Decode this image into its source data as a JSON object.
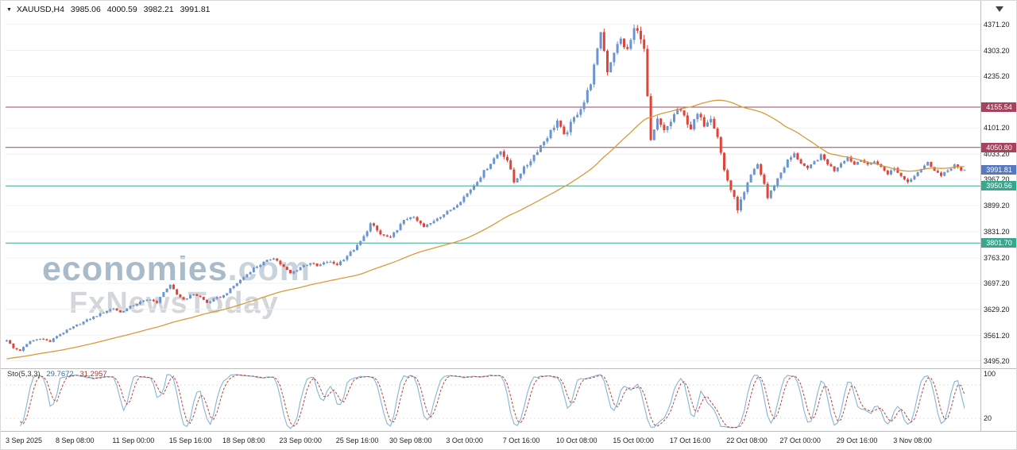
{
  "header": {
    "symbol_period": "XAUUSD,H4",
    "open": "3985.06",
    "high": "4000.59",
    "low": "3982.21",
    "close": "3991.81"
  },
  "watermark": {
    "brand": "economies",
    "brand_suffix": ".com",
    "tagline": "FxNewsToday"
  },
  "indicator": {
    "name": "Sto(5,3,3)",
    "value_k": "29.7672",
    "value_d": "31.2957"
  },
  "colors": {
    "up": "#6c94d1",
    "down": "#e04338",
    "ma": "#d79c3a",
    "stoch_k": "#86b4d6",
    "stoch_d": "#bb423c",
    "grid": "#f0f0f0",
    "level_red": "#a8415b",
    "level_teal": "#39a78e",
    "current_blue": "#5779bd",
    "separator": "#bdbdbd",
    "axis_text": "#1a1a1a"
  },
  "chart_data": {
    "type": "candlestick",
    "title": "XAUUSD,H4",
    "symbol": "XAUUSD",
    "timeframe": "H4",
    "ylim": [
      3482,
      4420
    ],
    "n_candles": 288,
    "last_close": 3991.81,
    "price_ticks": [
      "4371.20",
      "4303.20",
      "4235.20",
      "4101.20",
      "4033.20",
      "3967.20",
      "3899.20",
      "3831.20",
      "3763.20",
      "3697.20",
      "3629.20",
      "3561.20",
      "3495.20"
    ],
    "time_labels": [
      {
        "text": "3 Sep 2025",
        "i": 0
      },
      {
        "text": "8 Sep 08:00",
        "i": 15
      },
      {
        "text": "11 Sep 00:00",
        "i": 32
      },
      {
        "text": "15 Sep 16:00",
        "i": 49
      },
      {
        "text": "18 Sep 08:00",
        "i": 65
      },
      {
        "text": "23 Sep 00:00",
        "i": 82
      },
      {
        "text": "25 Sep 16:00",
        "i": 99
      },
      {
        "text": "30 Sep 08:00",
        "i": 115
      },
      {
        "text": "3 Oct 00:00",
        "i": 132
      },
      {
        "text": "7 Oct 16:00",
        "i": 149
      },
      {
        "text": "10 Oct 08:00",
        "i": 165
      },
      {
        "text": "15 Oct 00:00",
        "i": 182
      },
      {
        "text": "17 Oct 16:00",
        "i": 199
      },
      {
        "text": "22 Oct 08:00",
        "i": 216
      },
      {
        "text": "27 Oct 00:00",
        "i": 232
      },
      {
        "text": "29 Oct 16:00",
        "i": 249
      },
      {
        "text": "3 Nov 08:00",
        "i": 266
      }
    ],
    "levels": [
      {
        "label": "4155.54",
        "price": 4155.54,
        "color": "#a8415b"
      },
      {
        "label": "4050.80",
        "price": 4050.8,
        "color": "#a8415b"
      },
      {
        "label": "3950.56",
        "price": 3950.56,
        "color": "#39a78e"
      },
      {
        "label": "3801.70",
        "price": 3801.7,
        "color": "#39a78e"
      }
    ],
    "current_price": {
      "label": "3991.81",
      "price": 3991.81,
      "color": "#5779bd"
    },
    "ma": {
      "type": "SMA",
      "period": 55
    },
    "stochastic": {
      "params": "5,3,3",
      "k_period": 5,
      "slowing": 3,
      "d_period": 3,
      "last_k": 29.7672,
      "last_d": 31.2957,
      "scale_labels": [
        {
          "text": "100",
          "value": 100
        },
        {
          "text": "20",
          "value": 20
        }
      ]
    },
    "price_path_waypoints": [
      [
        0,
        3550
      ],
      [
        2,
        3528
      ],
      [
        4,
        3522
      ],
      [
        7,
        3546
      ],
      [
        10,
        3554
      ],
      [
        13,
        3545
      ],
      [
        15,
        3560
      ],
      [
        18,
        3574
      ],
      [
        21,
        3588
      ],
      [
        24,
        3601
      ],
      [
        27,
        3613
      ],
      [
        30,
        3626
      ],
      [
        32,
        3632
      ],
      [
        34,
        3621
      ],
      [
        37,
        3636
      ],
      [
        40,
        3648
      ],
      [
        43,
        3656
      ],
      [
        45,
        3645
      ],
      [
        47,
        3676
      ],
      [
        49,
        3691
      ],
      [
        51,
        3668
      ],
      [
        53,
        3655
      ],
      [
        56,
        3669
      ],
      [
        58,
        3661
      ],
      [
        60,
        3646
      ],
      [
        63,
        3659
      ],
      [
        65,
        3665
      ],
      [
        68,
        3690
      ],
      [
        71,
        3713
      ],
      [
        74,
        3736
      ],
      [
        77,
        3751
      ],
      [
        80,
        3764
      ],
      [
        82,
        3747
      ],
      [
        85,
        3722
      ],
      [
        88,
        3739
      ],
      [
        91,
        3751
      ],
      [
        93,
        3741
      ],
      [
        96,
        3753
      ],
      [
        99,
        3746
      ],
      [
        101,
        3761
      ],
      [
        103,
        3777
      ],
      [
        105,
        3794
      ],
      [
        107,
        3818
      ],
      [
        109,
        3852
      ],
      [
        110,
        3844
      ],
      [
        112,
        3824
      ],
      [
        115,
        3814
      ],
      [
        117,
        3839
      ],
      [
        119,
        3859
      ],
      [
        121,
        3872
      ],
      [
        123,
        3859
      ],
      [
        125,
        3843
      ],
      [
        127,
        3853
      ],
      [
        129,
        3868
      ],
      [
        132,
        3882
      ],
      [
        134,
        3896
      ],
      [
        136,
        3913
      ],
      [
        138,
        3931
      ],
      [
        140,
        3953
      ],
      [
        142,
        3976
      ],
      [
        144,
        3999
      ],
      [
        146,
        4022
      ],
      [
        148,
        4042
      ],
      [
        150,
        4018
      ],
      [
        152,
        3960
      ],
      [
        154,
        3986
      ],
      [
        156,
        4006
      ],
      [
        158,
        4031
      ],
      [
        160,
        4056
      ],
      [
        162,
        4079
      ],
      [
        164,
        4106
      ],
      [
        165,
        4120
      ],
      [
        167,
        4079
      ],
      [
        169,
        4111
      ],
      [
        171,
        4141
      ],
      [
        173,
        4169
      ],
      [
        175,
        4221
      ],
      [
        177,
        4301
      ],
      [
        178,
        4354
      ],
      [
        180,
        4251
      ],
      [
        182,
        4301
      ],
      [
        184,
        4331
      ],
      [
        186,
        4302
      ],
      [
        188,
        4359
      ],
      [
        190,
        4341
      ],
      [
        191,
        4302
      ],
      [
        193,
        4062
      ],
      [
        195,
        4121
      ],
      [
        197,
        4091
      ],
      [
        199,
        4119
      ],
      [
        201,
        4151
      ],
      [
        203,
        4131
      ],
      [
        205,
        4101
      ],
      [
        207,
        4136
      ],
      [
        209,
        4111
      ],
      [
        211,
        4131
      ],
      [
        213,
        4081
      ],
      [
        215,
        3991
      ],
      [
        217,
        3941
      ],
      [
        219,
        3892
      ],
      [
        221,
        3931
      ],
      [
        223,
        3976
      ],
      [
        225,
        4006
      ],
      [
        227,
        3956
      ],
      [
        228,
        3919
      ],
      [
        230,
        3953
      ],
      [
        232,
        3986
      ],
      [
        234,
        4016
      ],
      [
        236,
        4033
      ],
      [
        238,
        4011
      ],
      [
        240,
        3993
      ],
      [
        242,
        4013
      ],
      [
        244,
        4029
      ],
      [
        246,
        4009
      ],
      [
        248,
        3991
      ],
      [
        250,
        4011
      ],
      [
        252,
        4026
      ],
      [
        254,
        4006
      ],
      [
        256,
        4021
      ],
      [
        258,
        4003
      ],
      [
        260,
        4016
      ],
      [
        262,
        3999
      ],
      [
        264,
        3983
      ],
      [
        266,
        3996
      ],
      [
        268,
        3976
      ],
      [
        270,
        3961
      ],
      [
        272,
        3979
      ],
      [
        274,
        3996
      ],
      [
        276,
        4011
      ],
      [
        278,
        3993
      ],
      [
        280,
        3976
      ],
      [
        282,
        3991
      ],
      [
        284,
        4006
      ],
      [
        286,
        3988
      ],
      [
        287,
        3991.81
      ]
    ],
    "volatility_waypoints": [
      [
        0,
        5
      ],
      [
        60,
        6
      ],
      [
        100,
        8
      ],
      [
        140,
        11
      ],
      [
        160,
        14
      ],
      [
        175,
        20
      ],
      [
        190,
        24
      ],
      [
        200,
        18
      ],
      [
        215,
        17
      ],
      [
        230,
        13
      ],
      [
        245,
        9
      ],
      [
        287,
        8
      ]
    ]
  }
}
